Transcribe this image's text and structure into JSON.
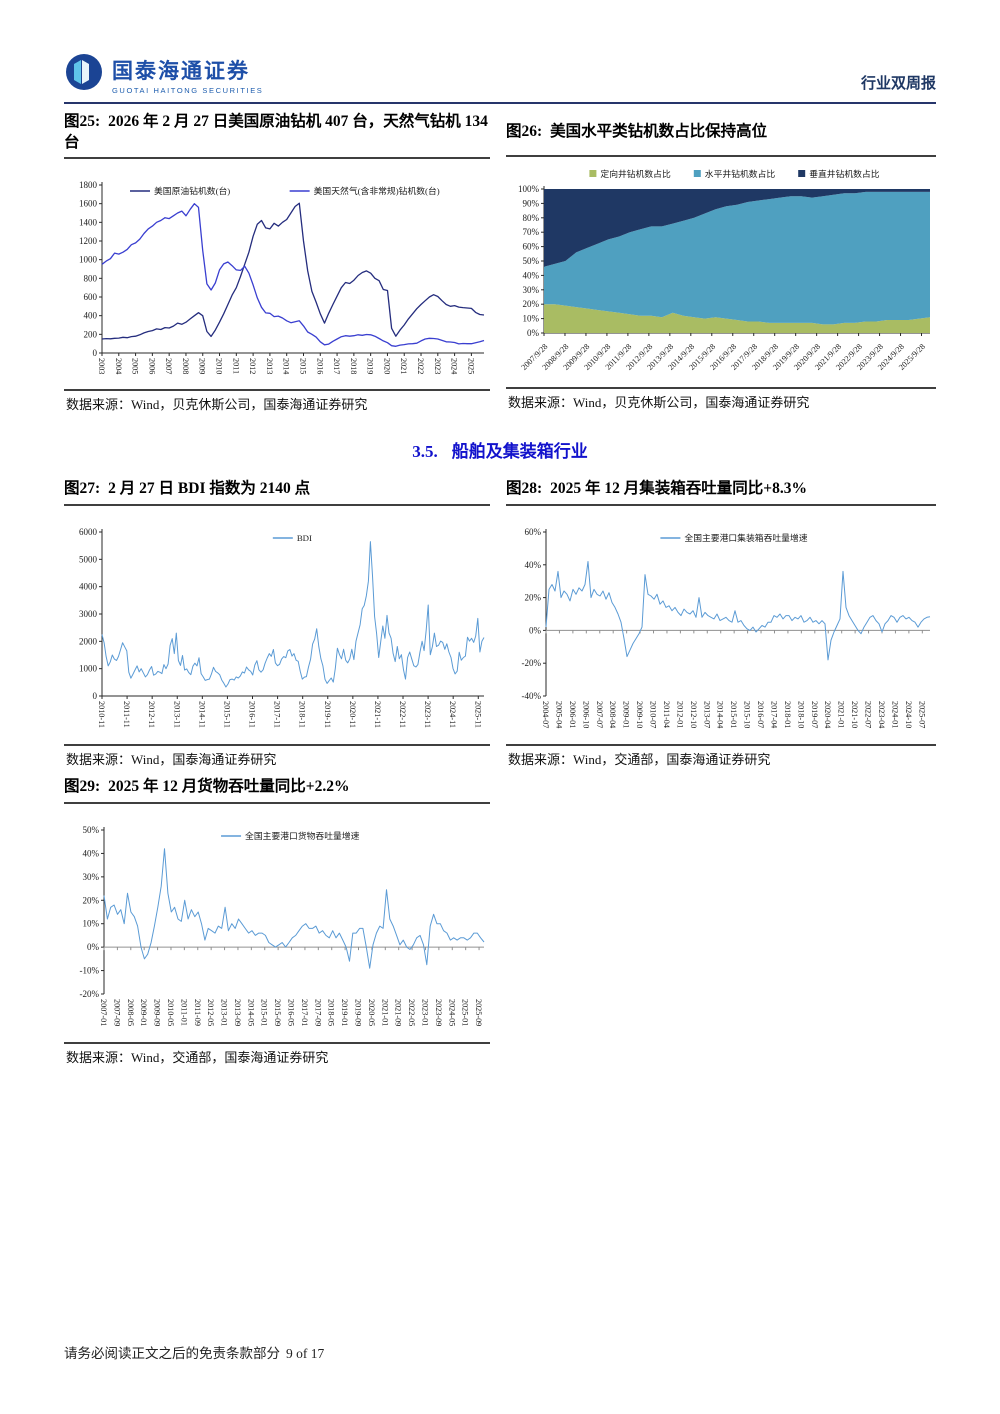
{
  "header": {
    "brand_cn": "国泰海通证券",
    "brand_en": "GUOTAI HAITONG SECURITIES",
    "report_type": "行业双周报"
  },
  "section_heading": {
    "number": "3.5.",
    "title": "船舶及集装箱行业"
  },
  "footer": {
    "disclaimer": "请务必阅读正文之后的免责条款部分",
    "page": "9 of 17"
  },
  "figures": {
    "fig25": {
      "label": "图25:",
      "title": "2026 年 2 月 27 日美国原油钻机 407 台，天然气钻机 134 台",
      "source": "数据来源：Wind，贝克休斯公司，国泰海通证券研究"
    },
    "fig26": {
      "label": "图26:",
      "title": "美国水平类钻机数占比保持高位",
      "source": "数据来源：Wind，贝克休斯公司，国泰海通证券研究"
    },
    "fig27": {
      "label": "图27:",
      "title": "2 月 27 日 BDI 指数为 2140 点",
      "source": "数据来源：Wind，国泰海通证券研究"
    },
    "fig28": {
      "label": "图28:",
      "title": "2025 年 12 月集装箱吞吐量同比+8.3%",
      "source": "数据来源：Wind，交通部，国泰海通证券研究"
    },
    "fig29": {
      "label": "图29:",
      "title": "2025 年 12 月货物吞吐量同比+2.2%",
      "source": "数据来源：Wind，交通部，国泰海通证券研究"
    }
  },
  "chart_data": [
    {
      "type": "line",
      "title": "图25 美国原油钻机与天然气钻机数",
      "ylim": [
        0,
        1800
      ],
      "yticks": [
        0,
        200,
        400,
        600,
        800,
        1000,
        1200,
        1400,
        1600,
        1800
      ],
      "ytick_labels": [
        "0",
        "200",
        "400",
        "600",
        "800",
        "1000",
        "1200",
        "1400",
        "1600",
        "1800"
      ],
      "x_labels": [
        "2003",
        "2004",
        "2005",
        "2006",
        "2007",
        "2008",
        "2009",
        "2010",
        "2011",
        "2012",
        "2013",
        "2014",
        "2015",
        "2016",
        "2017",
        "2018",
        "2019",
        "2020",
        "2021",
        "2022",
        "2023",
        "2024",
        "2025"
      ],
      "x_rotate": 90,
      "label_span": 0.967,
      "margins": {
        "l": 38,
        "r": 6,
        "t": 20,
        "b": 34
      },
      "legend_gap": 50,
      "series": [
        {
          "name": "美国原油钻机数(台)",
          "color": "#252d7e",
          "width": 1.3,
          "values": [
            150,
            154,
            152,
            157,
            160,
            168,
            164,
            176,
            180,
            195,
            215,
            230,
            240,
            258,
            252,
            272,
            268,
            288,
            320,
            308,
            330,
            365,
            400,
            432,
            400,
            230,
            178,
            245,
            330,
            420,
            520,
            620,
            700,
            820,
            950,
            1080,
            1250,
            1380,
            1420,
            1340,
            1330,
            1390,
            1360,
            1400,
            1430,
            1500,
            1570,
            1605,
            1200,
            880,
            660,
            545,
            420,
            320,
            425,
            520,
            610,
            700,
            755,
            745,
            780,
            830,
            862,
            880,
            855,
            800,
            775,
            680,
            670,
            265,
            180,
            245,
            300,
            365,
            420,
            475,
            520,
            560,
            600,
            625,
            605,
            560,
            520,
            500,
            508,
            492,
            486,
            482,
            478,
            435,
            412,
            407
          ]
        },
        {
          "name": "美国天然气(含非常规)钻机数(台)",
          "color": "#3a3fd0",
          "width": 1.3,
          "values": [
            950,
            985,
            1010,
            1070,
            1060,
            1080,
            1110,
            1160,
            1180,
            1220,
            1280,
            1330,
            1360,
            1400,
            1420,
            1450,
            1440,
            1470,
            1500,
            1520,
            1470,
            1540,
            1600,
            1560,
            1100,
            740,
            675,
            750,
            890,
            955,
            975,
            935,
            890,
            885,
            930,
            855,
            730,
            590,
            490,
            430,
            425,
            390,
            395,
            375,
            345,
            325,
            335,
            345,
            290,
            225,
            200,
            170,
            120,
            88,
            95,
            125,
            150,
            175,
            185,
            180,
            185,
            195,
            190,
            198,
            195,
            180,
            155,
            130,
            110,
            78,
            72,
            85,
            90,
            97,
            100,
            105,
            130,
            150,
            157,
            155,
            150,
            135,
            120,
            118,
            112,
            98,
            102,
            100,
            100,
            110,
            120,
            134
          ]
        }
      ]
    },
    {
      "type": "stacked_area_percent",
      "title": "图26 美国钻机类型占比",
      "ylim": [
        0,
        100
      ],
      "yticks": [
        0,
        10,
        20,
        30,
        40,
        50,
        60,
        70,
        80,
        90,
        100
      ],
      "ytick_labels": [
        "0%",
        "10%",
        "20%",
        "30%",
        "40%",
        "50%",
        "60%",
        "70%",
        "80%",
        "90%",
        "100%"
      ],
      "x_labels": [
        "2007/9/28",
        "2008/9/28",
        "2009/9/28",
        "2010/9/28",
        "2011/9/28",
        "2012/9/28",
        "2013/9/28",
        "2014/9/28",
        "2015/9/28",
        "2016/9/28",
        "2017/9/28",
        "2018/9/28",
        "2019/9/28",
        "2020/9/28",
        "2021/9/28",
        "2022/9/28",
        "2023/9/28",
        "2024/9/28",
        "2025/9/28"
      ],
      "x_rotate": 45,
      "label_span": 0.978,
      "margins": {
        "l": 38,
        "r": 6,
        "t": 26,
        "b": 52
      },
      "legend_gap": 18,
      "series": [
        {
          "name": "定向井钻机数占比",
          "color": "#a9bc63",
          "values": [
            20,
            20,
            19,
            18,
            17,
            16,
            15,
            14,
            13,
            12,
            12,
            11,
            14,
            12,
            11,
            10,
            11,
            10,
            9,
            8,
            8,
            7,
            7,
            7,
            7,
            7,
            6,
            6,
            7,
            7,
            8,
            8,
            9,
            9,
            9,
            10,
            11
          ]
        },
        {
          "name": "水平井钻机数占比",
          "color": "#4fa0c0",
          "values": [
            26,
            28,
            31,
            38,
            42,
            46,
            50,
            53,
            57,
            60,
            62,
            63,
            62,
            66,
            69,
            73,
            75,
            78,
            80,
            83,
            84,
            86,
            87,
            88,
            88,
            87,
            89,
            90,
            90,
            90,
            90,
            90,
            89,
            89,
            89,
            88,
            87
          ]
        },
        {
          "name": "垂直井钻机数占比",
          "color": "#1f3864",
          "values": [
            54,
            52,
            50,
            44,
            41,
            38,
            35,
            33,
            30,
            28,
            26,
            26,
            24,
            22,
            20,
            17,
            14,
            12,
            11,
            9,
            8,
            7,
            6,
            5,
            5,
            6,
            5,
            4,
            3,
            3,
            2,
            2,
            2,
            2,
            2,
            2,
            2
          ]
        }
      ]
    },
    {
      "type": "line",
      "title": "图27 BDI 指数",
      "ylim": [
        0,
        6000
      ],
      "yticks": [
        0,
        1000,
        2000,
        3000,
        4000,
        5000,
        6000
      ],
      "ytick_labels": [
        "0",
        "1000",
        "2000",
        "3000",
        "4000",
        "5000",
        "6000"
      ],
      "x_labels": [
        "2010-11",
        "2011-11",
        "2012-11",
        "2013-11",
        "2014-11",
        "2015-11",
        "2016-11",
        "2017-11",
        "2018-11",
        "2019-11",
        "2020-11",
        "2021-11",
        "2022-11",
        "2023-11",
        "2024-11",
        "2025-11"
      ],
      "x_rotate": 90,
      "label_span": 0.985,
      "margins": {
        "l": 38,
        "r": 6,
        "t": 20,
        "b": 46
      },
      "series": [
        {
          "name": "BDI",
          "color": "#5b9bd5",
          "width": 1,
          "values": [
            2250,
            1950,
            1450,
            1100,
            1250,
            1500,
            1350,
            1300,
            1450,
            1700,
            1950,
            1800,
            1650,
            870,
            650,
            800,
            950,
            1100,
            880,
            1000,
            850,
            700,
            780,
            950,
            1080,
            760,
            800,
            900,
            870,
            820,
            1150,
            1000,
            1170,
            1850,
            2100,
            1550,
            2300,
            1300,
            1120,
            1480,
            950,
            990,
            860,
            780,
            1090,
            1200,
            1100,
            1400,
            820,
            700,
            570,
            600,
            620,
            800,
            1050,
            900,
            850,
            780,
            580,
            470,
            330,
            440,
            600,
            620,
            580,
            700,
            660,
            730,
            880,
            840,
            1060,
            960,
            900,
            770,
            1130,
            1290,
            960,
            870,
            960,
            1200,
            1390,
            1550,
            1450,
            1700,
            1210,
            1110,
            1160,
            1350,
            1440,
            1400,
            1650,
            1700,
            1460,
            1550,
            1310,
            1270,
            910,
            620,
            690,
            710,
            1060,
            1350,
            1900,
            2090,
            2460,
            1810,
            1360,
            1100,
            610,
            460,
            560,
            660,
            510,
            1010,
            1750,
            1510,
            1360,
            1710,
            1310,
            1210,
            1360,
            1710,
            1330,
            2010,
            2300,
            2610,
            3190,
            3310,
            3660,
            4200,
            5650,
            4400,
            2910,
            2290,
            1410,
            2010,
            2560,
            2110,
            2950,
            2310,
            2110,
            1560,
            1260,
            1810,
            1360,
            1510,
            960,
            620,
            1410,
            1610,
            1360,
            1110,
            1060,
            1150,
            1610,
            2000,
            1660,
            2410,
            3330,
            1510,
            1810,
            2300,
            1810,
            1860,
            2010,
            1960,
            1710,
            1910,
            1610,
            1410,
            1010,
            810,
            910,
            1600,
            1310,
            1410,
            1460,
            2150,
            2010,
            2110,
            1960,
            2190,
            2840,
            1610,
            2000,
            2140
          ]
        }
      ]
    },
    {
      "type": "line",
      "title": "图28 全国主要港口集装箱吞吐量同比增速",
      "zero_axis": true,
      "ylim": [
        -40,
        60
      ],
      "yticks": [
        -40,
        -20,
        0,
        20,
        40,
        60
      ],
      "ytick_labels": [
        "-40%",
        "-20%",
        "0%",
        "20%",
        "40%",
        "60%"
      ],
      "x_labels": [
        "2004-07",
        "2005-04",
        "2006-01",
        "2006-10",
        "2007-07",
        "2008-04",
        "2009-01",
        "2009-10",
        "2010-07",
        "2011-04",
        "2012-01",
        "2012-10",
        "2013-07",
        "2014-04",
        "2015-01",
        "2015-10",
        "2016-07",
        "2017-04",
        "2018-01",
        "2018-10",
        "2019-07",
        "2020-04",
        "2021-01",
        "2021-10",
        "2022-07",
        "2023-04",
        "2024-01",
        "2024-10",
        "2025-07"
      ],
      "x_rotate": 90,
      "label_span": 0.98,
      "margins": {
        "l": 40,
        "r": 6,
        "t": 20,
        "b": 46
      },
      "series": [
        {
          "name": "全国主要港口集装箱吞吐量增速",
          "color": "#5b9bd5",
          "width": 1,
          "values": [
            2,
            25,
            28,
            24,
            36,
            20,
            24,
            22,
            18,
            25,
            22,
            26,
            24,
            28,
            42,
            20,
            25,
            22,
            21,
            24,
            19,
            23,
            17,
            14,
            10,
            5,
            -5,
            -16,
            -12,
            -8,
            -5,
            -2,
            2,
            34,
            22,
            21,
            19,
            22,
            16,
            18,
            14,
            15,
            12,
            14,
            11,
            9,
            13,
            11,
            10,
            12,
            8,
            20,
            8,
            11,
            9,
            8,
            7,
            10,
            6,
            7,
            8,
            6,
            5,
            12,
            5,
            6,
            3,
            1,
            0,
            2,
            -1,
            1,
            3,
            2,
            5,
            5,
            9,
            8,
            10,
            7,
            9,
            9,
            6,
            8,
            7,
            9,
            5,
            6,
            8,
            5,
            6,
            4,
            6,
            4,
            -18,
            -6,
            -1,
            3,
            7,
            36,
            14,
            9,
            6,
            3,
            0,
            -2,
            2,
            5,
            8,
            9,
            6,
            4,
            -1,
            4,
            6,
            9,
            8,
            5,
            8,
            9,
            7,
            8,
            6,
            5,
            2,
            5,
            7,
            8,
            8.3
          ]
        }
      ]
    },
    {
      "type": "line",
      "title": "图29 全国主要港口货物吞吐量同比增速",
      "zero_axis": true,
      "ylim": [
        -20,
        50
      ],
      "yticks": [
        -20,
        -10,
        0,
        10,
        20,
        30,
        40,
        50
      ],
      "ytick_labels": [
        "-20%",
        "-10%",
        "0%",
        "10%",
        "20%",
        "30%",
        "40%",
        "50%"
      ],
      "x_labels": [
        "2007-01",
        "2007-09",
        "2008-05",
        "2009-01",
        "2009-09",
        "2010-05",
        "2011-01",
        "2011-09",
        "2012-05",
        "2013-01",
        "2013-09",
        "2014-05",
        "2015-01",
        "2015-09",
        "2016-05",
        "2017-01",
        "2017-09",
        "2018-05",
        "2019-01",
        "2019-09",
        "2020-05",
        "2021-01",
        "2021-09",
        "2022-05",
        "2023-01",
        "2023-09",
        "2024-05",
        "2025-01",
        "2025-09"
      ],
      "x_rotate": 90,
      "label_span": 0.987,
      "margins": {
        "l": 40,
        "r": 6,
        "t": 20,
        "b": 46
      },
      "series": [
        {
          "name": "全国主要港口货物吞吐量增速",
          "color": "#5b9bd5",
          "width": 1,
          "values": [
            22,
            12,
            17,
            18,
            14,
            16,
            10,
            23,
            15,
            13,
            9,
            0,
            -5,
            -3,
            2,
            9,
            17,
            26,
            42,
            23,
            15,
            17,
            12,
            11,
            20,
            12,
            16,
            13,
            15,
            10,
            3,
            8,
            7,
            6,
            9,
            8,
            17,
            7,
            10,
            8,
            12,
            10,
            8,
            6,
            7,
            5,
            6,
            6,
            5,
            2,
            1,
            0,
            1,
            2,
            0,
            2,
            4,
            5,
            7,
            9,
            10,
            8,
            8,
            9,
            6,
            7,
            5,
            4,
            7,
            4,
            6,
            3,
            0,
            -6,
            6,
            6,
            8,
            8,
            0,
            -9,
            1,
            6,
            9,
            8,
            24.5,
            12,
            9,
            5,
            1,
            3,
            0,
            -1,
            1,
            4,
            5,
            1,
            -7.5,
            9,
            14,
            10,
            10,
            7,
            6,
            3,
            4,
            3,
            4,
            4,
            3,
            4,
            6,
            6,
            4,
            2.2
          ]
        }
      ]
    }
  ]
}
